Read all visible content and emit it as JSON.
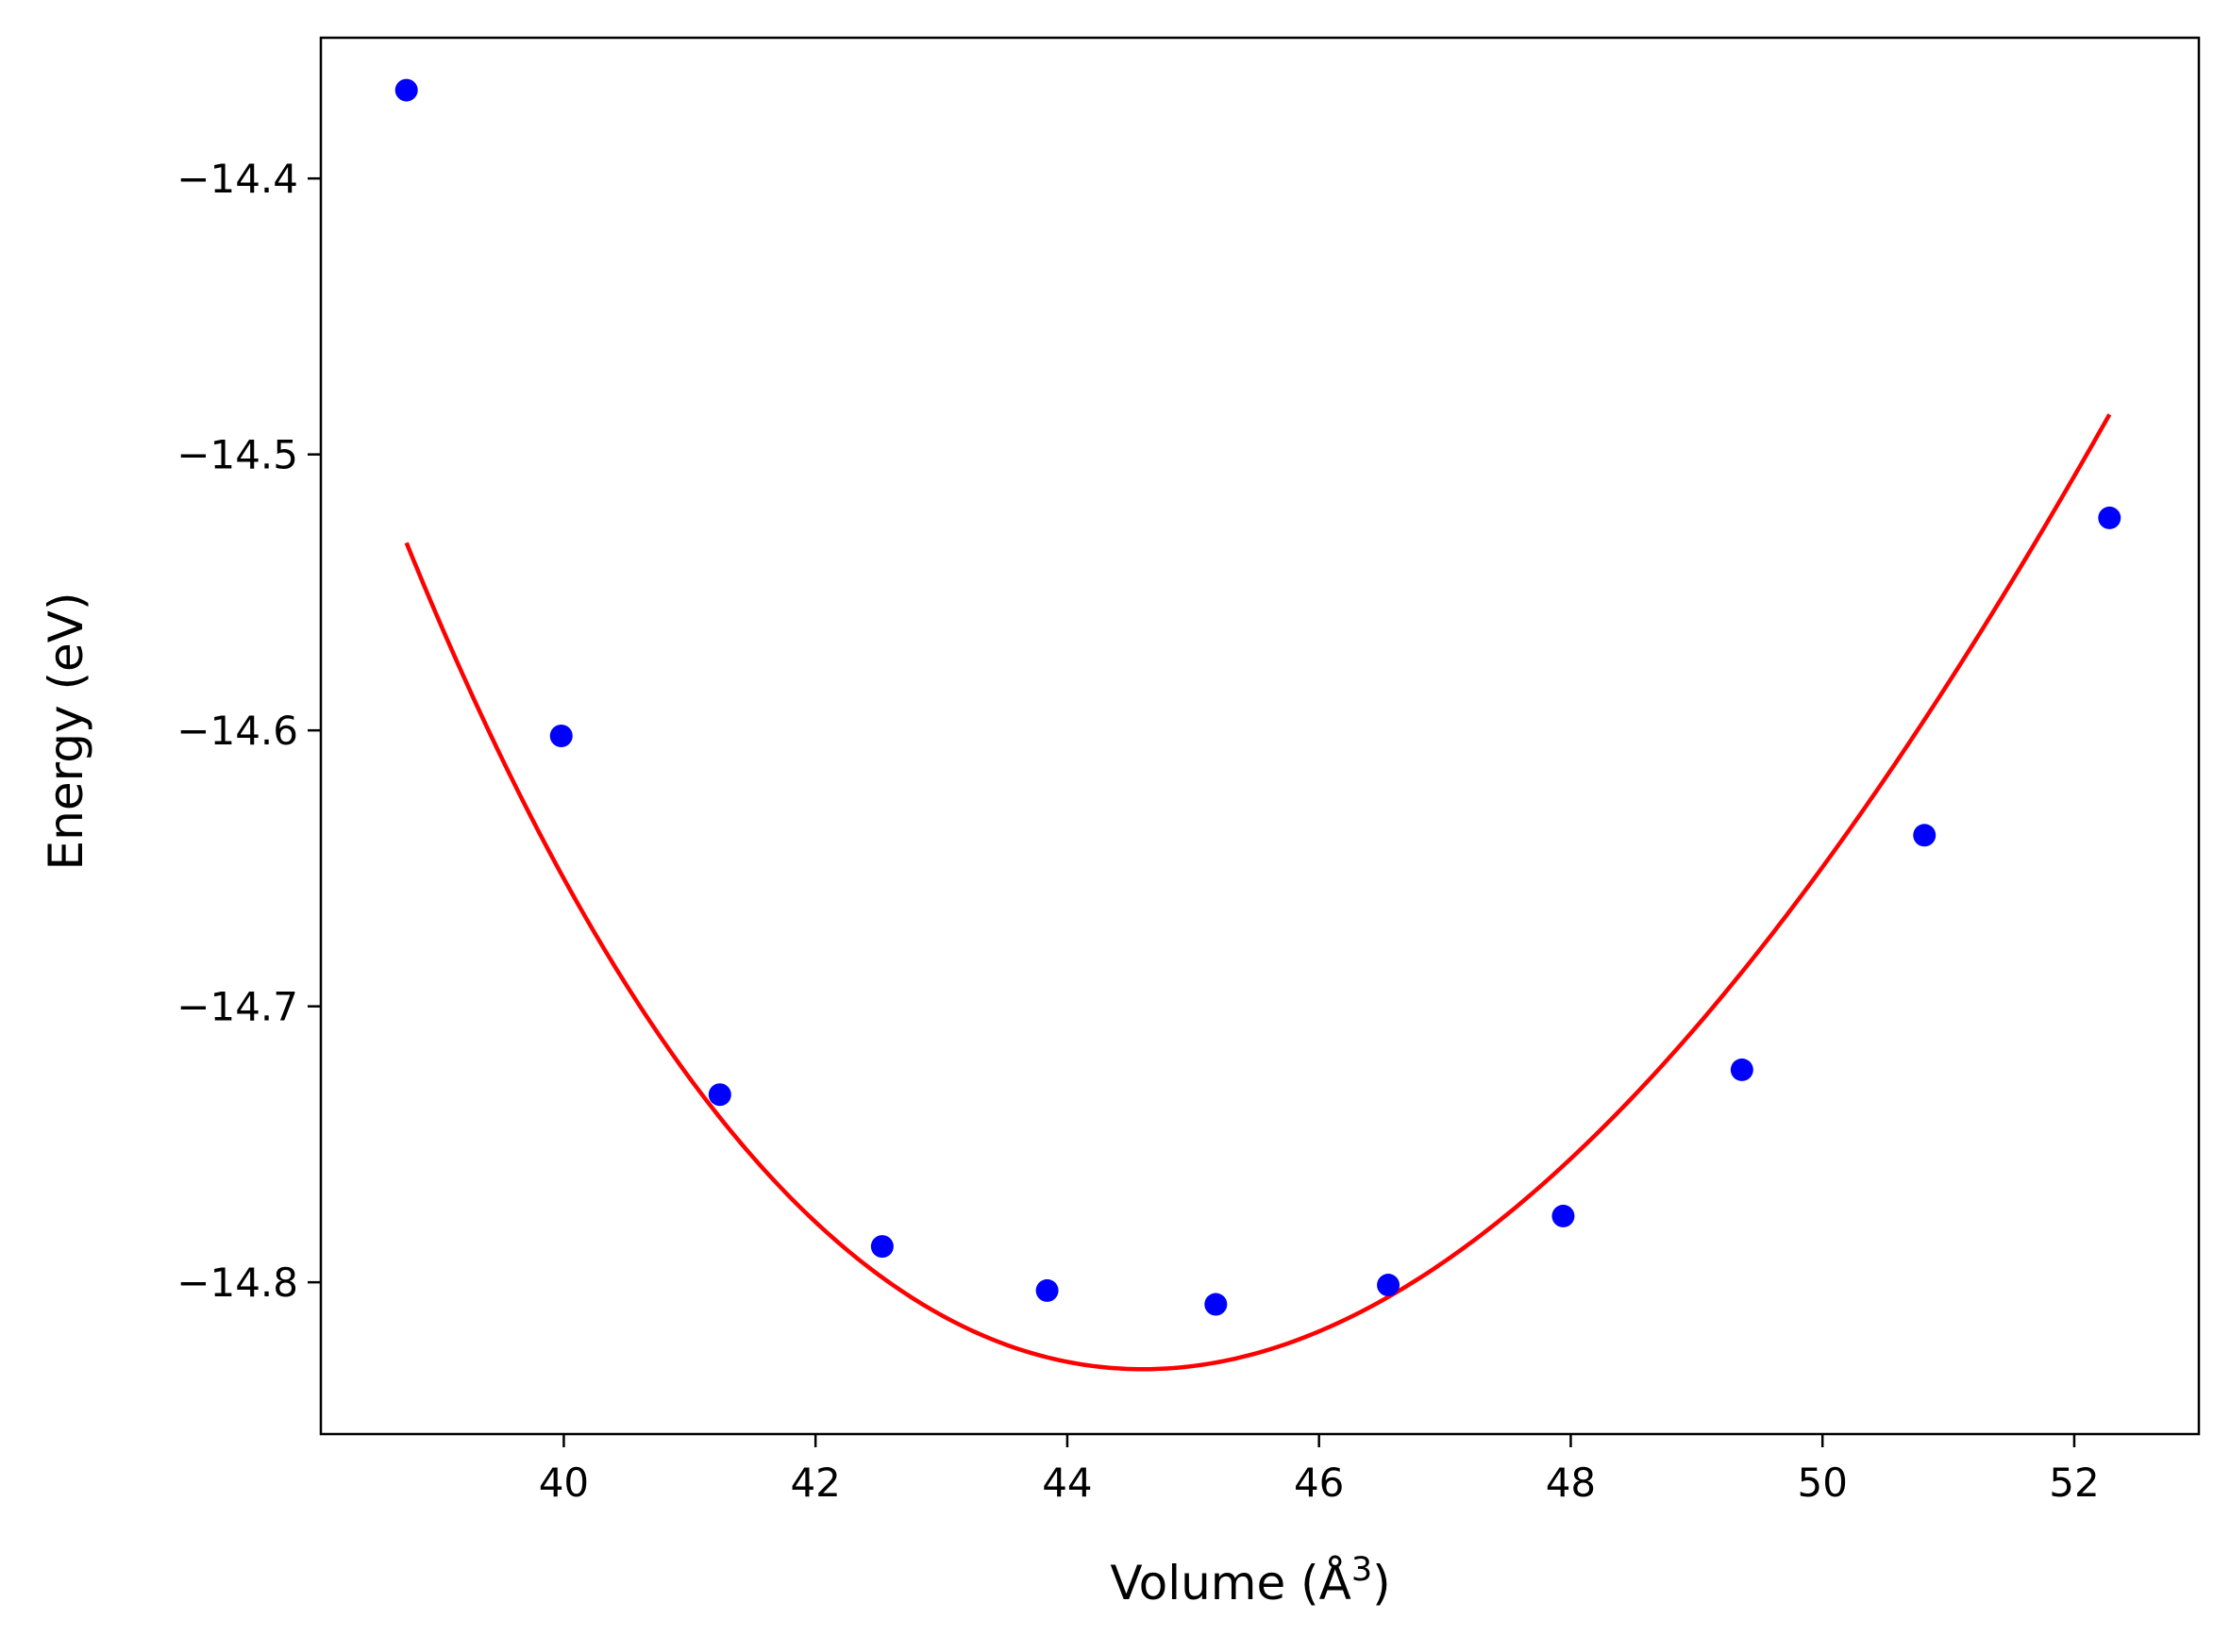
{
  "chart_data": {
    "type": "scatter",
    "title": "",
    "xlabel": "Volume (Å",
    "xlabel_sup": "3",
    "xlabel_close": ")",
    "ylabel": "Energy (eV)",
    "xlim": [
      38.07,
      52.99
    ],
    "ylim": [
      -14.855,
      -14.349
    ],
    "xticks": [
      40,
      42,
      44,
      46,
      48,
      50,
      52
    ],
    "yticks": [
      -14.4,
      -14.5,
      -14.6,
      -14.7,
      -14.8
    ],
    "xtick_labels": [
      "40",
      "42",
      "44",
      "46",
      "48",
      "50",
      "52"
    ],
    "ytick_labels": [
      "−14.4",
      "−14.5",
      "−14.6",
      "−14.7",
      "−14.8"
    ],
    "grid": false,
    "legend": "none",
    "series": [
      {
        "kind": "scatter",
        "color": "#0000ff",
        "x": [
          38.75,
          39.98,
          41.24,
          42.53,
          43.84,
          45.18,
          46.55,
          47.94,
          49.36,
          50.81,
          52.28
        ],
        "y": [
          -14.368,
          -14.602,
          -14.732,
          -14.787,
          -14.803,
          -14.808,
          -14.801,
          -14.776,
          -14.723,
          -14.638,
          -14.523
        ]
      },
      {
        "kind": "line",
        "color": "#ff0000",
        "fit": {
          "model": "birch-murnaghan",
          "E0": -14.8315,
          "V0": 44.6,
          "B0": 0.65,
          "B0p": 3.0,
          "x_range": [
            38.75,
            52.28
          ]
        }
      }
    ]
  }
}
